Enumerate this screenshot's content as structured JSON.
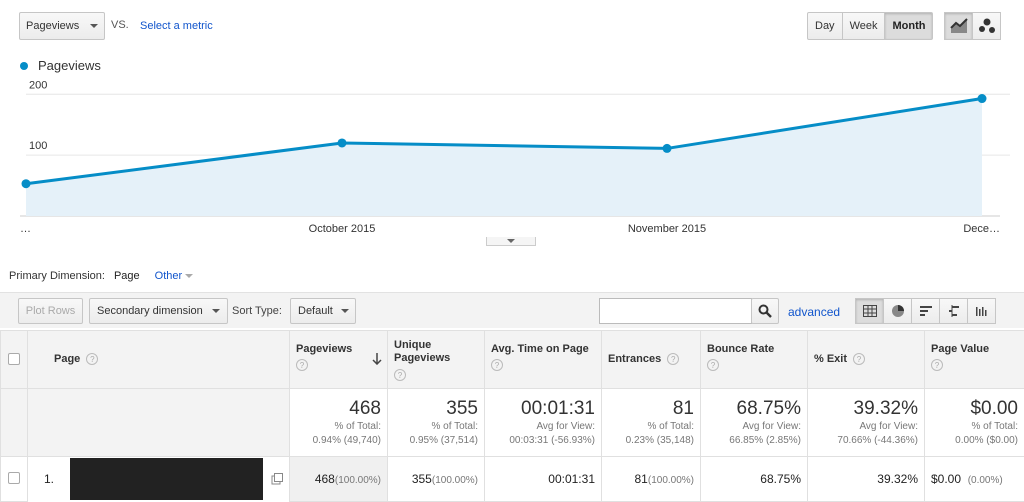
{
  "header": {
    "metric_select": "Pageviews",
    "vs_label": "VS.",
    "select_metric_link": "Select a metric",
    "period_buttons": [
      "Day",
      "Week",
      "Month"
    ],
    "active_period": "Month",
    "chart_type_icons": [
      "line-chart-icon",
      "motion-chart-icon"
    ]
  },
  "chart_data": {
    "type": "area",
    "title": "",
    "series": [
      {
        "name": "Pageviews",
        "values": [
          53,
          120,
          111,
          193
        ]
      }
    ],
    "x": [
      "…",
      "October 2015",
      "November 2015",
      "Dece…"
    ],
    "x_tick_labels": [
      "…",
      "October 2015",
      "November 2015",
      "Dece…"
    ],
    "y_tick_labels": [
      "100",
      "200"
    ],
    "ylim": [
      0,
      230
    ],
    "legend_position": "top-left",
    "grid": true,
    "colors": {
      "line": "#058dc7",
      "fill": "#e5f1f9"
    }
  },
  "dimension": {
    "label": "Primary Dimension:",
    "current": "Page",
    "other": "Other"
  },
  "toolbar": {
    "plot_rows": "Plot Rows",
    "secondary_dimension": "Secondary dimension",
    "sort_type_label": "Sort Type:",
    "sort_type_value": "Default",
    "search_placeholder": "",
    "advanced": "advanced",
    "view_icons": [
      "data-table-icon",
      "pie-chart-icon",
      "performance-icon",
      "comparison-icon",
      "term-cloud-icon"
    ]
  },
  "table": {
    "headers": {
      "page": "Page",
      "pageviews": "Pageviews",
      "unique": "Unique Pageviews",
      "avg_time": "Avg. Time on Page",
      "entrances": "Entrances",
      "bounce": "Bounce Rate",
      "exit": "% Exit",
      "value": "Page Value"
    },
    "totals": {
      "pageviews": {
        "big": "468",
        "l1": "% of Total:",
        "l2": "0.94% (49,740)"
      },
      "unique": {
        "big": "355",
        "l1": "% of Total:",
        "l2": "0.95% (37,514)"
      },
      "avg_time": {
        "big": "00:01:31",
        "l1": "Avg for View:",
        "l2": "00:03:31 (-56.93%)"
      },
      "entrances": {
        "big": "81",
        "l1": "% of Total:",
        "l2": "0.23% (35,148)"
      },
      "bounce": {
        "big": "68.75%",
        "l1": "Avg for View:",
        "l2": "66.85% (2.85%)"
      },
      "exit": {
        "big": "39.32%",
        "l1": "Avg for View:",
        "l2": "70.66% (-44.36%)"
      },
      "value": {
        "big": "$0.00",
        "l1": "% of Total:",
        "l2": "0.00% ($0.00)"
      }
    },
    "rows": [
      {
        "index": "1.",
        "pageviews": "468",
        "pageviews_pct": "(100.00%)",
        "unique": "355",
        "unique_pct": "(100.00%)",
        "avg_time": "00:01:31",
        "entrances": "81",
        "entrances_pct": "(100.00%)",
        "bounce": "68.75%",
        "exit": "39.32%",
        "value": "$0.00",
        "value_pct": "(0.00%)"
      }
    ]
  }
}
